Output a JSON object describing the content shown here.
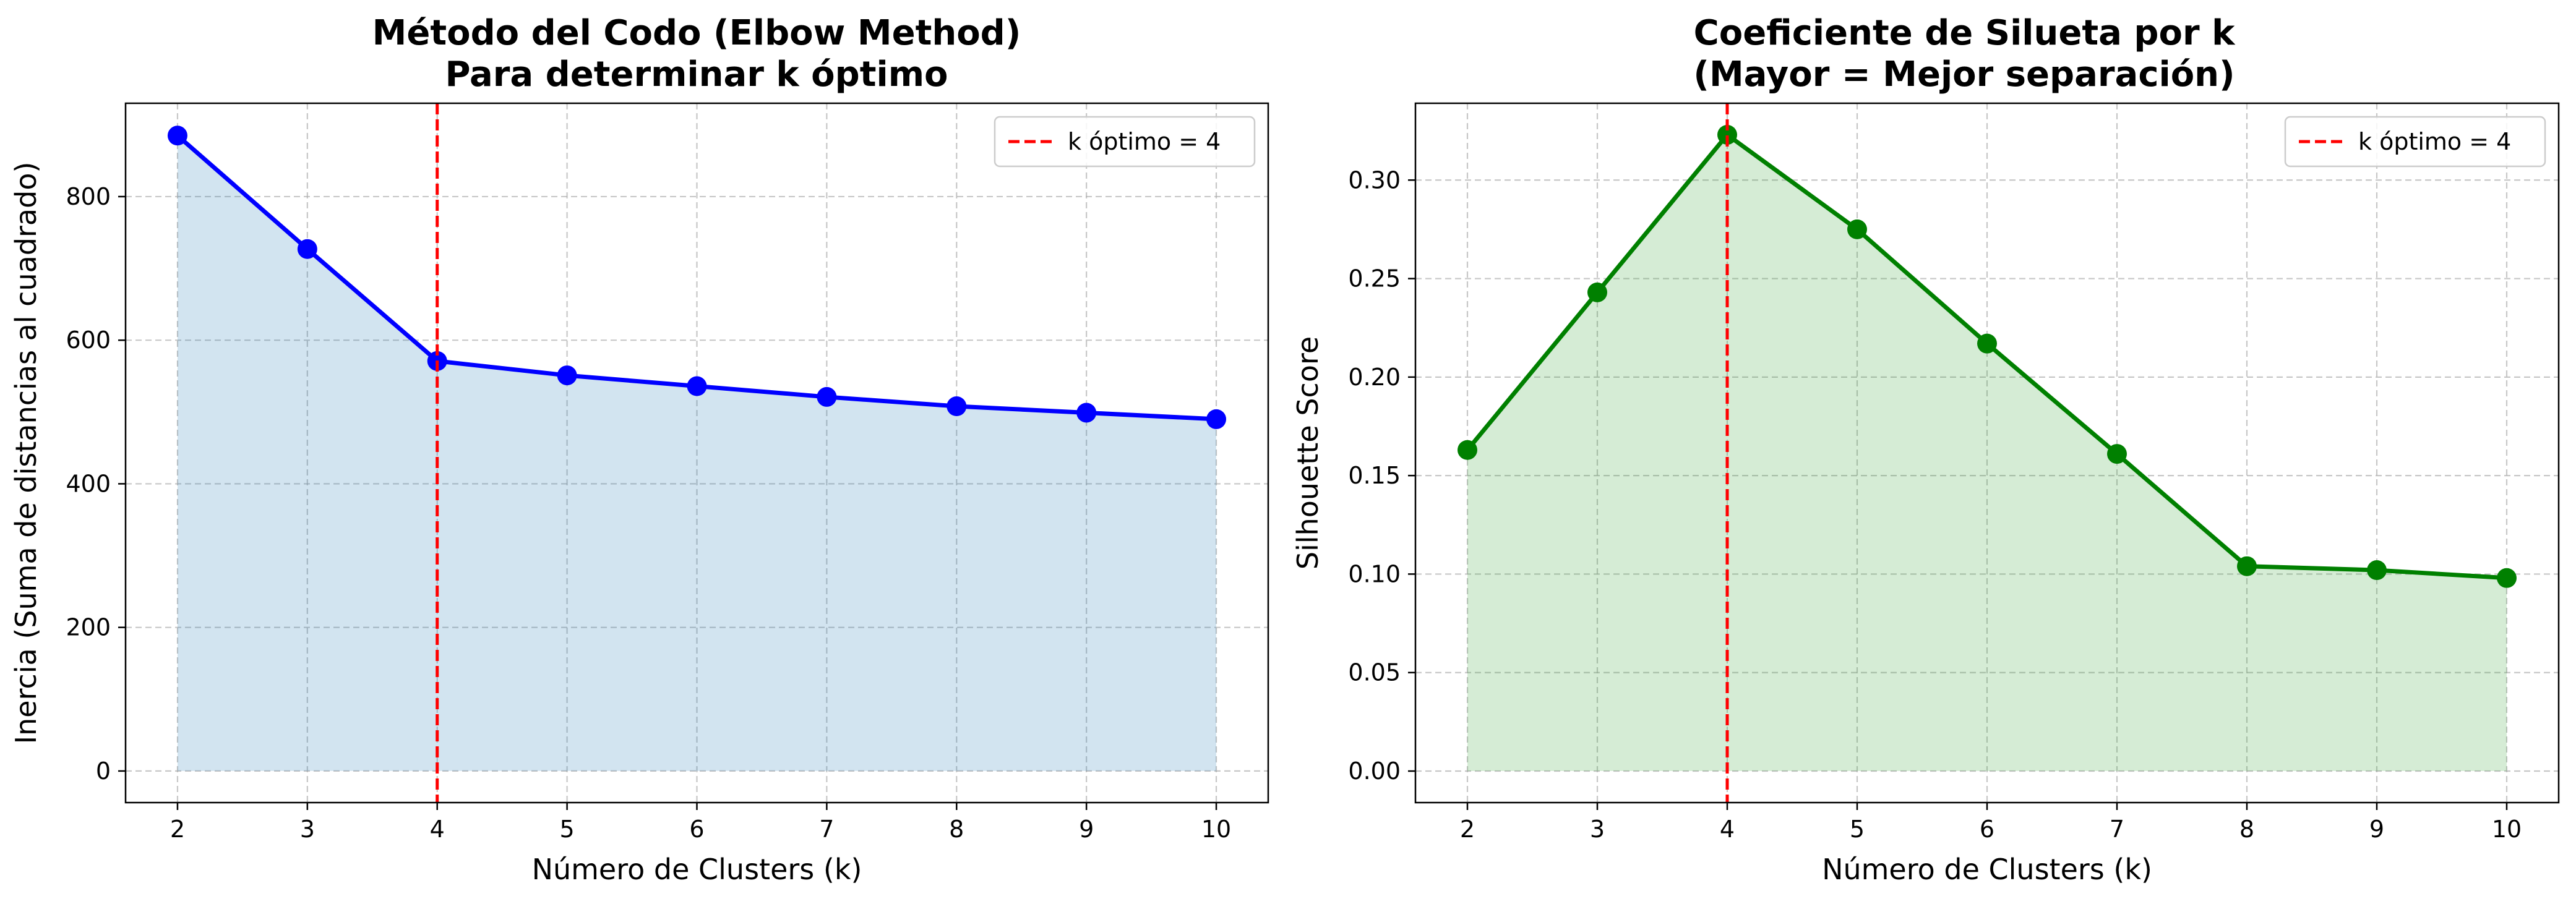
{
  "chart_data": [
    {
      "type": "line",
      "title_lines": [
        "Método del Codo (Elbow Method)",
        "Para determinar k óptimo"
      ],
      "xlabel": "Número de Clusters (k)",
      "ylabel": "Inercia (Suma de distancias al cuadrado)",
      "x": [
        2,
        3,
        4,
        5,
        6,
        7,
        8,
        9,
        10
      ],
      "y": [
        885,
        727,
        571,
        551,
        536,
        521,
        508,
        499,
        490
      ],
      "xlim": [
        1.6,
        10.4
      ],
      "ylim": [
        -44,
        930
      ],
      "xticks": [
        2,
        3,
        4,
        5,
        6,
        7,
        8,
        9,
        10
      ],
      "xtick_labels": [
        "2",
        "3",
        "4",
        "5",
        "6",
        "7",
        "8",
        "9",
        "10"
      ],
      "yticks": [
        0,
        200,
        400,
        600,
        800
      ],
      "ytick_labels": [
        "0",
        "200",
        "400",
        "600",
        "800"
      ],
      "grid": true,
      "fill_under": true,
      "line_color": "#0000ff",
      "fill_color": "#1f77b4",
      "vline": {
        "x": 4,
        "color": "#ff0000"
      },
      "legend": {
        "position": "upper-right",
        "label": "k óptimo = 4"
      }
    },
    {
      "type": "line",
      "title_lines": [
        "Coeficiente de Silueta por k",
        "(Mayor = Mejor separación)"
      ],
      "xlabel": "Número de Clusters (k)",
      "ylabel": "Silhouette Score",
      "x": [
        2,
        3,
        4,
        5,
        6,
        7,
        8,
        9,
        10
      ],
      "y": [
        0.163,
        0.243,
        0.323,
        0.275,
        0.217,
        0.161,
        0.104,
        0.102,
        0.098
      ],
      "xlim": [
        1.6,
        10.4
      ],
      "ylim": [
        -0.016,
        0.339
      ],
      "xticks": [
        2,
        3,
        4,
        5,
        6,
        7,
        8,
        9,
        10
      ],
      "xtick_labels": [
        "2",
        "3",
        "4",
        "5",
        "6",
        "7",
        "8",
        "9",
        "10"
      ],
      "yticks": [
        0.0,
        0.05,
        0.1,
        0.15,
        0.2,
        0.25,
        0.3
      ],
      "ytick_labels": [
        "0.00",
        "0.05",
        "0.10",
        "0.15",
        "0.20",
        "0.25",
        "0.30"
      ],
      "grid": true,
      "fill_under": true,
      "line_color": "#008000",
      "fill_color": "#2ca02c",
      "vline": {
        "x": 4,
        "color": "#ff0000"
      },
      "legend": {
        "position": "upper-right",
        "label": "k óptimo = 4"
      }
    }
  ]
}
